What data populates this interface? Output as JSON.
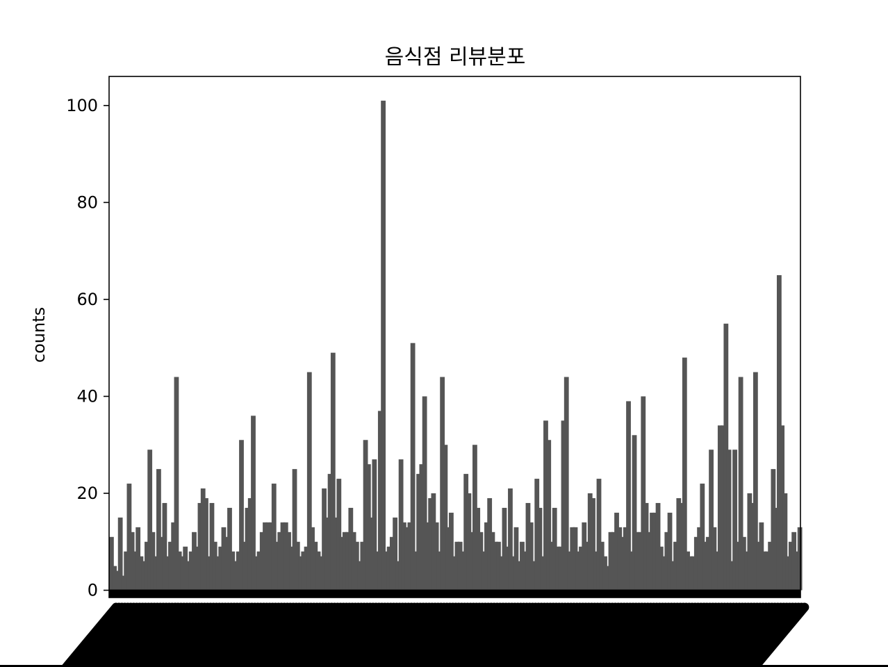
{
  "chart_data": {
    "type": "bar",
    "title": "음식점 리뷰분포",
    "xlabel": "",
    "ylabel": "counts",
    "ylim": [
      -1.5,
      106
    ],
    "yticks": [
      0,
      20,
      40,
      60,
      80,
      100
    ],
    "bar_color": "#555555",
    "x_tick_labels_legible": false,
    "grid": false,
    "values": [
      11,
      5,
      4,
      15,
      3,
      8,
      22,
      12,
      8,
      13,
      7,
      6,
      10,
      29,
      12,
      7,
      25,
      11,
      18,
      7,
      10,
      14,
      44,
      8,
      7,
      9,
      6,
      8,
      12,
      9,
      18,
      21,
      19,
      7,
      18,
      10,
      7,
      9,
      13,
      11,
      17,
      8,
      6,
      8,
      31,
      10,
      17,
      19,
      36,
      7,
      8,
      12,
      14,
      14,
      14,
      22,
      10,
      12,
      14,
      14,
      12,
      9,
      25,
      10,
      7,
      8,
      9,
      45,
      13,
      10,
      8,
      7,
      21,
      15,
      24,
      49,
      15,
      23,
      11,
      12,
      12,
      17,
      12,
      10,
      6,
      10,
      31,
      26,
      15,
      27,
      8,
      37,
      101,
      8,
      9,
      11,
      15,
      6,
      27,
      14,
      13,
      14,
      51,
      8,
      24,
      26,
      40,
      14,
      19,
      20,
      14,
      8,
      44,
      30,
      13,
      16,
      7,
      10,
      10,
      8,
      24,
      20,
      12,
      30,
      17,
      12,
      8,
      14,
      19,
      12,
      10,
      10,
      7,
      17,
      9,
      21,
      7,
      13,
      6,
      10,
      8,
      18,
      14,
      6,
      23,
      17,
      7,
      35,
      31,
      10,
      17,
      9,
      9,
      35,
      44,
      8,
      13,
      13,
      8,
      9,
      14,
      10,
      20,
      19,
      8,
      23,
      10,
      7,
      5,
      12,
      12,
      16,
      13,
      11,
      13,
      39,
      8,
      32,
      12,
      12,
      40,
      18,
      12,
      16,
      16,
      18,
      9,
      7,
      12,
      16,
      6,
      10,
      19,
      18,
      48,
      8,
      7,
      7,
      11,
      13,
      22,
      10,
      11,
      29,
      13,
      8,
      34,
      34,
      55,
      29,
      6,
      29,
      10,
      44,
      11,
      8,
      20,
      18,
      45,
      10,
      14,
      8,
      8,
      10,
      25,
      17,
      65,
      34,
      20,
      7,
      10,
      12,
      8,
      13
    ]
  }
}
